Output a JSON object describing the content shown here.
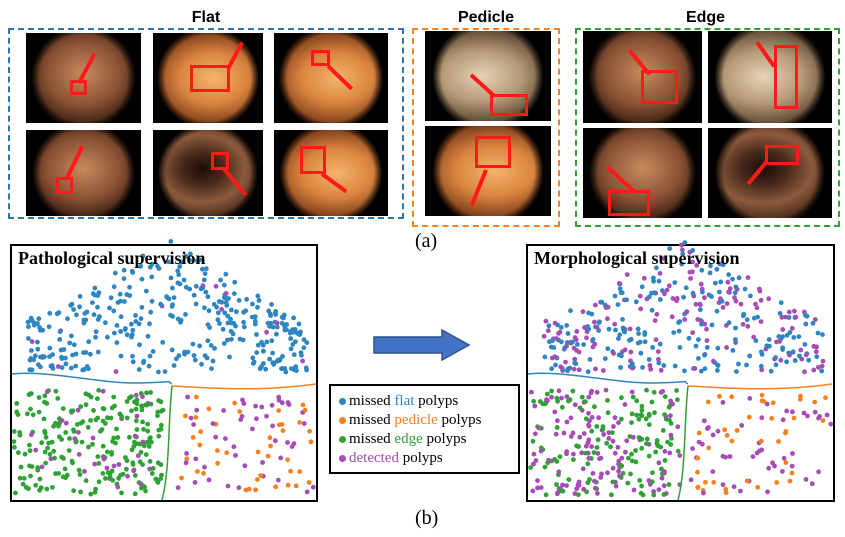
{
  "groups": {
    "flat": {
      "label": "Flat",
      "header_color": "#2E75B6",
      "border_color": "#2E75B6"
    },
    "pedicle": {
      "label": "Pedicle",
      "header_color": "#F5811F",
      "border_color": "#F5811F"
    },
    "edge": {
      "label": "Edge",
      "header_color": "#2FA235",
      "border_color": "#2FA235"
    }
  },
  "caption_a": "(a)",
  "caption_b": "(b)",
  "panels": {
    "left_title": "Pathological supervision",
    "right_title": "Morphological supervision"
  },
  "legend": {
    "items": [
      {
        "prefix": "missed",
        "keyword": "flat",
        "suffix": "polyps",
        "color": "#2E86C1"
      },
      {
        "prefix": "missed",
        "keyword": "pedicle",
        "suffix": "polyps",
        "color": "#F5811F"
      },
      {
        "prefix": "missed",
        "keyword": "edge",
        "suffix": " polyps",
        "color": "#2FA235"
      },
      {
        "prefix": "",
        "keyword": "detected",
        "suffix": "polyps",
        "color": "#A64CB5"
      }
    ]
  },
  "colors": {
    "flat": "#2E86C1",
    "pedicle": "#F5811F",
    "edge": "#2FA235",
    "detected": "#A64CB5",
    "arrow": "#4472C4",
    "arrow_border": "#2F528F"
  }
}
